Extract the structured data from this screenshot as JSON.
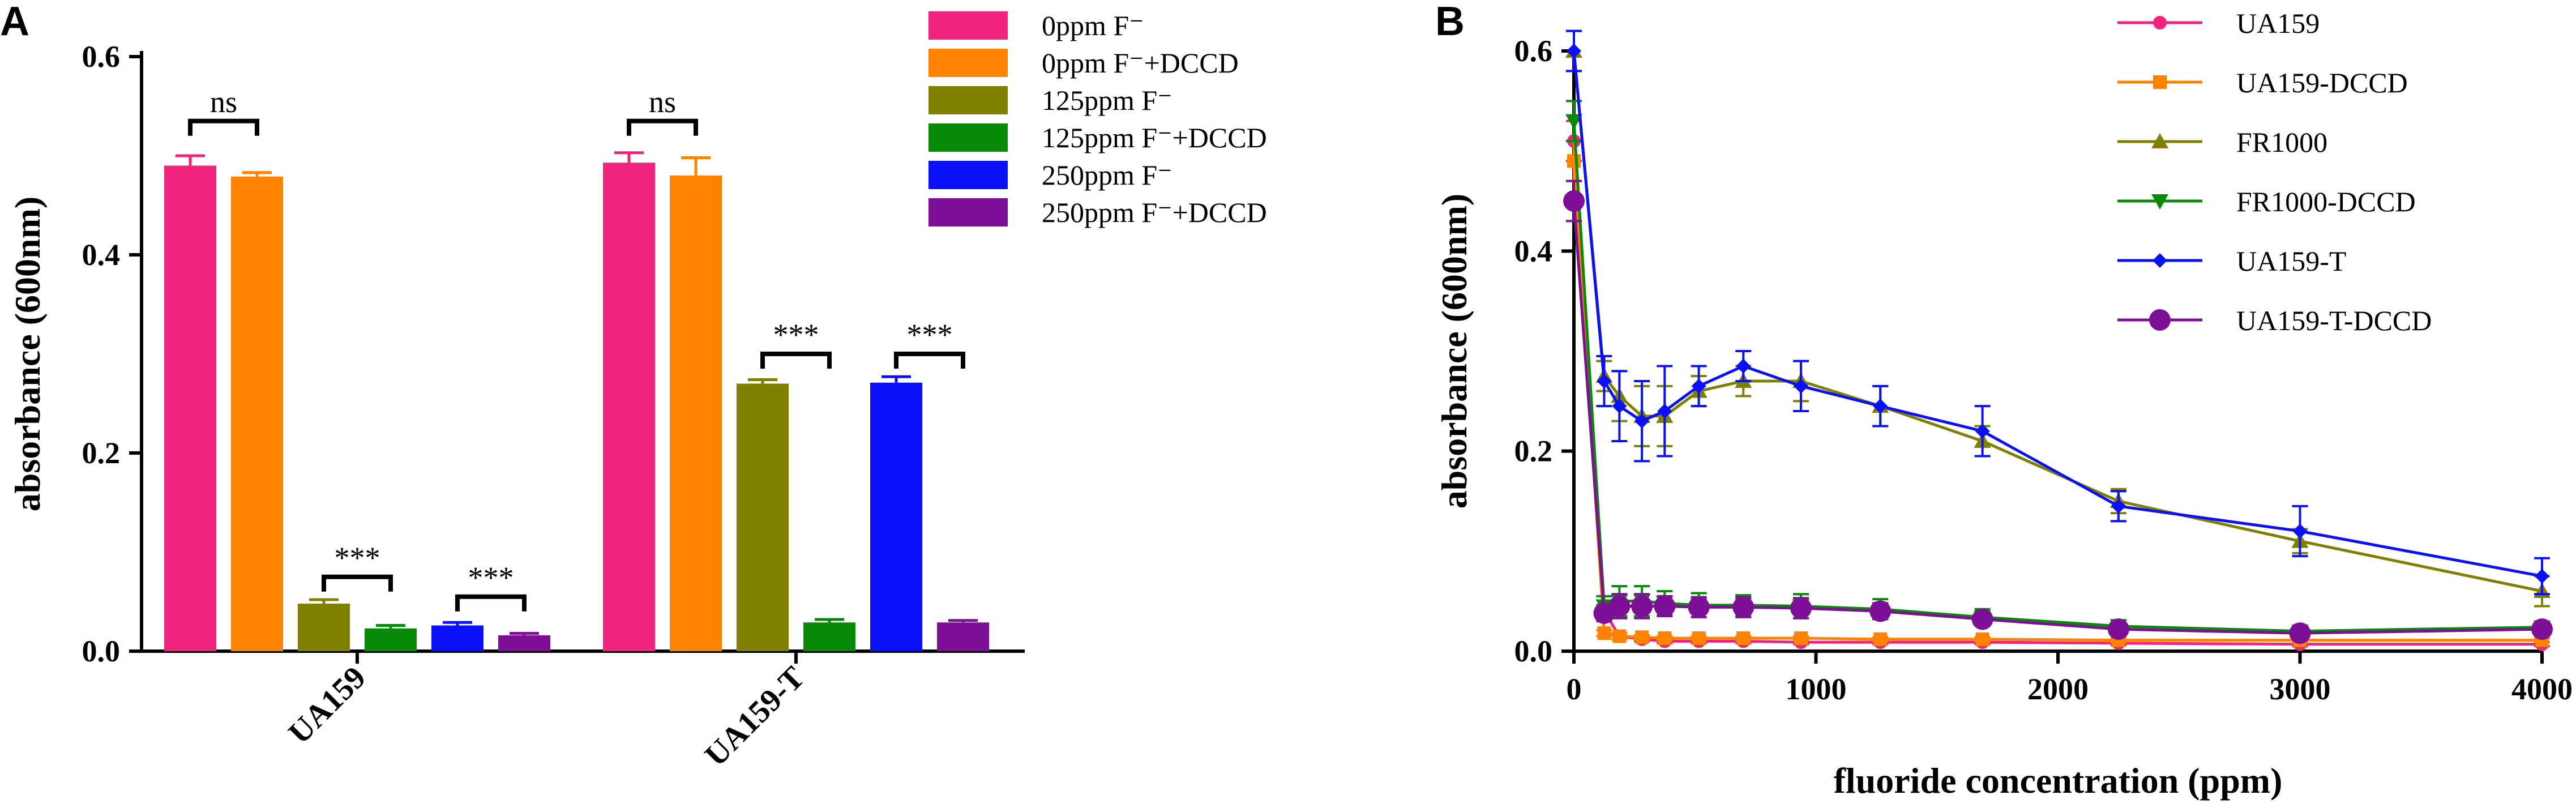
{
  "panels": {
    "a": {
      "letter": "A"
    },
    "b": {
      "letter": "B"
    }
  },
  "chart_data": [
    {
      "panel": "A",
      "type": "bar",
      "title": "",
      "xlabel": "",
      "ylabel": "absorbance (600nm)",
      "ylim": [
        0,
        0.6
      ],
      "yticks": [
        0.0,
        0.2,
        0.4,
        0.6
      ],
      "ytick_labels": [
        "0.0",
        "0.2",
        "0.4",
        "0.6"
      ],
      "grid": false,
      "legend_position": "top-right",
      "categories": [
        "UA159",
        "UA159-T"
      ],
      "series": [
        {
          "name": "0ppm F⁻",
          "color": "#F0237F",
          "values": [
            0.49,
            0.493
          ],
          "errors": [
            0.01,
            0.01
          ]
        },
        {
          "name": "0ppm F⁻+DCCD",
          "color": "#FF8200",
          "values": [
            0.479,
            0.48
          ],
          "errors": [
            0.004,
            0.018
          ]
        },
        {
          "name": "125ppm F⁻",
          "color": "#808000",
          "values": [
            0.048,
            0.27
          ],
          "errors": [
            0.004,
            0.004
          ]
        },
        {
          "name": "125ppm F⁻+DCCD",
          "color": "#078A07",
          "values": [
            0.023,
            0.029
          ],
          "errors": [
            0.003,
            0.003
          ]
        },
        {
          "name": "250ppm F⁻",
          "color": "#0B10FA",
          "values": [
            0.026,
            0.271
          ],
          "errors": [
            0.003,
            0.006
          ]
        },
        {
          "name": "250ppm F⁻+DCCD",
          "color": "#7D0F96",
          "values": [
            0.016,
            0.029
          ],
          "errors": [
            0.002,
            0.002
          ]
        }
      ],
      "annotations": [
        {
          "text": "ns",
          "category": 0,
          "pair": [
            0,
            1
          ],
          "y": 0.535
        },
        {
          "text": "***",
          "category": 0,
          "pair": [
            2,
            3
          ],
          "y": 0.075
        },
        {
          "text": "***",
          "category": 0,
          "pair": [
            4,
            5
          ],
          "y": 0.055
        },
        {
          "text": "ns",
          "category": 1,
          "pair": [
            0,
            1
          ],
          "y": 0.535
        },
        {
          "text": "***",
          "category": 1,
          "pair": [
            2,
            3
          ],
          "y": 0.3
        },
        {
          "text": "***",
          "category": 1,
          "pair": [
            4,
            5
          ],
          "y": 0.3
        }
      ]
    },
    {
      "panel": "B",
      "type": "line",
      "title": "",
      "xlabel": "fluoride concentration (ppm)",
      "ylabel": "absorbance (600nm)",
      "xlim": [
        0,
        4000
      ],
      "ylim": [
        0,
        0.6
      ],
      "xticks": [
        0,
        1000,
        2000,
        3000,
        4000
      ],
      "xtick_labels": [
        "0",
        "1000",
        "2000",
        "3000",
        "4000"
      ],
      "yticks": [
        0.0,
        0.2,
        0.4,
        0.6
      ],
      "ytick_labels": [
        "0.0",
        "0.2",
        "0.4",
        "0.6"
      ],
      "grid": false,
      "legend_position": "top-right",
      "x": [
        0,
        125,
        188,
        281,
        375,
        516,
        700,
        938,
        1266,
        1688,
        2250,
        3000,
        4000
      ],
      "series": [
        {
          "name": "UA159",
          "color": "#F0237F",
          "marker": "circle",
          "values": [
            0.51,
            0.04,
            0.015,
            0.012,
            0.01,
            0.01,
            0.01,
            0.009,
            0.009,
            0.009,
            0.008,
            0.007,
            0.007
          ],
          "errors": [
            0.02,
            0.004,
            0.003,
            0.002,
            0.002,
            0.002,
            0.002,
            0.002,
            0.002,
            0.002,
            0.002,
            0.002,
            0.002
          ]
        },
        {
          "name": "UA159-DCCD",
          "color": "#FF8200",
          "marker": "square",
          "values": [
            0.49,
            0.018,
            0.015,
            0.014,
            0.013,
            0.013,
            0.013,
            0.013,
            0.012,
            0.012,
            0.011,
            0.011,
            0.011
          ],
          "errors": [
            0.02,
            0.003,
            0.003,
            0.002,
            0.002,
            0.002,
            0.002,
            0.002,
            0.002,
            0.002,
            0.002,
            0.002,
            0.002
          ]
        },
        {
          "name": "FR1000",
          "color": "#808000",
          "marker": "triangle-up",
          "values": [
            0.6,
            0.275,
            0.255,
            0.235,
            0.235,
            0.26,
            0.27,
            0.27,
            0.245,
            0.21,
            0.15,
            0.11,
            0.06
          ],
          "errors": [
            0.02,
            0.015,
            0.025,
            0.03,
            0.03,
            0.015,
            0.015,
            0.02,
            0.02,
            0.015,
            0.012,
            0.012,
            0.015
          ]
        },
        {
          "name": "FR1000-DCCD",
          "color": "#078A07",
          "marker": "triangle-down",
          "values": [
            0.53,
            0.045,
            0.05,
            0.05,
            0.048,
            0.046,
            0.046,
            0.045,
            0.042,
            0.034,
            0.025,
            0.02,
            0.024
          ],
          "errors": [
            0.02,
            0.01,
            0.015,
            0.015,
            0.012,
            0.012,
            0.01,
            0.012,
            0.01,
            0.008,
            0.006,
            0.004,
            0.005
          ]
        },
        {
          "name": "UA159-T",
          "color": "#0B10FA",
          "marker": "diamond",
          "values": [
            0.6,
            0.27,
            0.245,
            0.23,
            0.24,
            0.265,
            0.285,
            0.265,
            0.245,
            0.22,
            0.145,
            0.12,
            0.075
          ],
          "errors": [
            0.02,
            0.025,
            0.035,
            0.04,
            0.045,
            0.02,
            0.015,
            0.025,
            0.02,
            0.025,
            0.015,
            0.025,
            0.018
          ]
        },
        {
          "name": "UA159-T-DCCD",
          "color": "#7D0F96",
          "marker": "circle-large",
          "values": [
            0.45,
            0.038,
            0.045,
            0.045,
            0.045,
            0.044,
            0.044,
            0.043,
            0.04,
            0.032,
            0.022,
            0.018,
            0.022
          ],
          "errors": [
            0.02,
            0.008,
            0.012,
            0.012,
            0.01,
            0.01,
            0.01,
            0.01,
            0.008,
            0.006,
            0.005,
            0.004,
            0.004
          ]
        }
      ]
    }
  ]
}
